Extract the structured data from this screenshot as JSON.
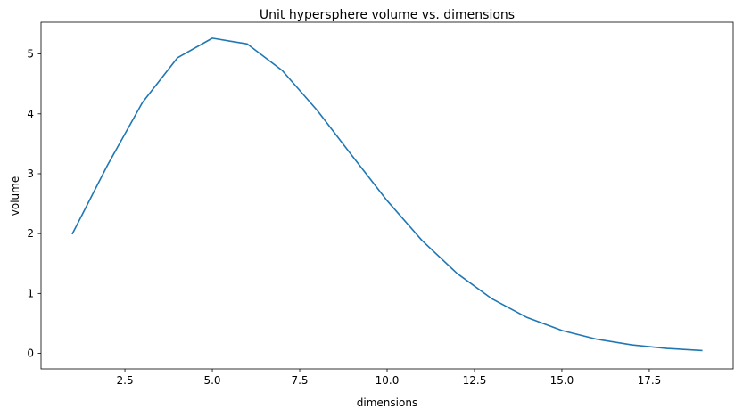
{
  "chart_data": {
    "type": "line",
    "title": "Unit hypersphere volume vs. dimensions",
    "xlabel": "dimensions",
    "ylabel": "volume",
    "xlim": [
      0.1,
      19.9
    ],
    "ylim": [
      -0.26,
      5.53
    ],
    "xticks": [
      2.5,
      5.0,
      7.5,
      10.0,
      12.5,
      15.0,
      17.5
    ],
    "xtick_labels": [
      "2.5",
      "5.0",
      "7.5",
      "10.0",
      "12.5",
      "15.0",
      "17.5"
    ],
    "yticks": [
      0,
      1,
      2,
      3,
      4,
      5
    ],
    "ytick_labels": [
      "0",
      "1",
      "2",
      "3",
      "4",
      "5"
    ],
    "grid": false,
    "series": [
      {
        "color": "#1f77b4",
        "x": [
          1,
          2,
          3,
          4,
          5,
          6,
          7,
          8,
          9,
          10,
          11,
          12,
          13,
          14,
          15,
          16,
          17,
          18,
          19
        ],
        "y": [
          2.0,
          3.1416,
          4.1888,
          4.9348,
          5.2638,
          5.1677,
          4.7248,
          4.0587,
          3.2985,
          2.5502,
          1.8841,
          1.3353,
          0.9106,
          0.5993,
          0.3814,
          0.2353,
          0.141,
          0.0821,
          0.0466
        ]
      }
    ]
  }
}
